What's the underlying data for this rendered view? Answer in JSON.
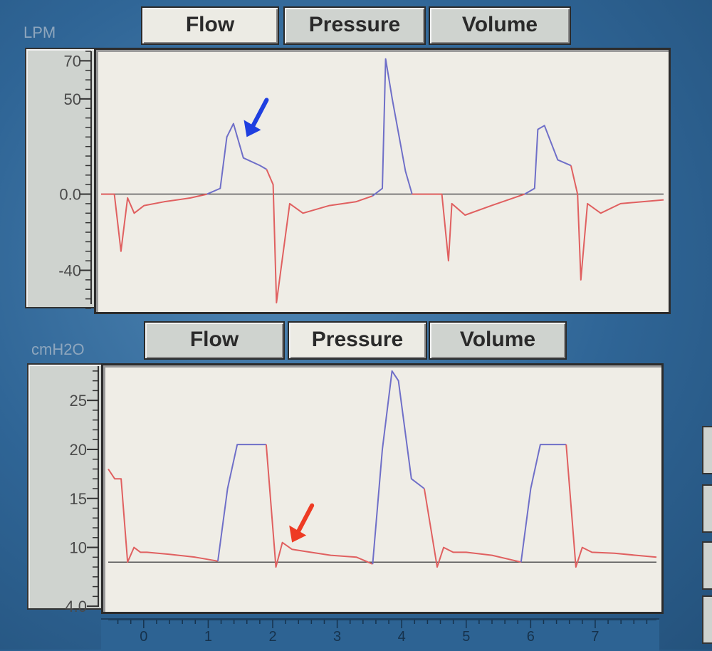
{
  "tabs_top": [
    {
      "label": "Flow",
      "active": true
    },
    {
      "label": "Pressure",
      "active": false
    },
    {
      "label": "Volume",
      "active": false
    }
  ],
  "tabs_bottom": [
    {
      "label": "Flow",
      "active": false
    },
    {
      "label": "Pressure",
      "active": true
    },
    {
      "label": "Volume",
      "active": false
    }
  ],
  "colors": {
    "inspiration": "#6f6fc8",
    "expiration": "#e06060",
    "arrow_blue": "#1f3fe0",
    "arrow_red": "#ee3b24",
    "baseline": "#555555"
  },
  "chart_data": [
    {
      "type": "line",
      "unit": "LPM",
      "yticks": [
        "70",
        "50",
        "0.0",
        "-40"
      ],
      "ylim": [
        -60,
        75
      ],
      "xlim": [
        -0.55,
        7.95
      ],
      "baseline": 0,
      "series": [
        {
          "phase": "inspiration",
          "x": [
            1.05,
            1.25,
            1.35,
            1.45,
            1.6,
            1.85,
            1.95
          ],
          "y": [
            0,
            3,
            30,
            37,
            19,
            15,
            13
          ]
        },
        {
          "phase": "expiration",
          "x": [
            -0.55,
            -0.35,
            -0.25,
            -0.15,
            -0.05,
            0.1,
            0.4,
            0.8,
            1.05
          ],
          "y": [
            0,
            0,
            -30,
            -2,
            -10,
            -6,
            -4,
            -2,
            0
          ]
        },
        {
          "phase": "expiration",
          "x": [
            1.95,
            2.05,
            2.1,
            2.3,
            2.5,
            2.9,
            3.3,
            3.55
          ],
          "y": [
            13,
            5,
            -57,
            -5,
            -10,
            -6,
            -4,
            -1
          ]
        },
        {
          "phase": "inspiration",
          "x": [
            3.55,
            3.7,
            3.75,
            3.85,
            4.05,
            4.15
          ],
          "y": [
            -1,
            3,
            71,
            50,
            12,
            0
          ]
        },
        {
          "phase": "expiration",
          "x": [
            4.15,
            4.3,
            4.6,
            4.7,
            4.75,
            4.95,
            5.35,
            5.85
          ],
          "y": [
            0,
            0,
            0,
            -35,
            -5,
            -11,
            -6,
            0
          ]
        },
        {
          "phase": "inspiration",
          "x": [
            5.85,
            6.0,
            6.05,
            6.15,
            6.35,
            6.55
          ],
          "y": [
            0,
            3,
            34,
            36,
            18,
            15
          ]
        },
        {
          "phase": "expiration",
          "x": [
            6.55,
            6.65,
            6.7,
            6.8,
            7.0,
            7.3,
            7.95
          ],
          "y": [
            15,
            0,
            -45,
            -5,
            -10,
            -5,
            -3
          ]
        }
      ],
      "annotation": {
        "type": "arrow",
        "color": "arrow_blue",
        "points_to": {
          "x": 1.65,
          "y": 30
        }
      }
    },
    {
      "type": "line",
      "unit": "cmH2O",
      "yticks": [
        "25",
        "20",
        "15",
        "10",
        "4.0"
      ],
      "ylim": [
        3.5,
        28.5
      ],
      "xlim": [
        -0.55,
        7.95
      ],
      "xticks": [
        "0",
        "1",
        "2",
        "3",
        "4",
        "5",
        "6",
        "7"
      ],
      "baseline": 8.5,
      "series": [
        {
          "phase": "expiration",
          "x": [
            -0.55,
            -0.45,
            -0.35,
            -0.25,
            -0.15,
            -0.05,
            0.05,
            0.4,
            0.8,
            1.15
          ],
          "y": [
            18,
            17,
            17,
            8.5,
            10,
            9.5,
            9.5,
            9.3,
            9.0,
            8.6
          ]
        },
        {
          "phase": "inspiration",
          "x": [
            1.15,
            1.3,
            1.45,
            1.75,
            1.9
          ],
          "y": [
            8.6,
            16,
            20.5,
            20.5,
            20.5
          ]
        },
        {
          "phase": "expiration",
          "x": [
            1.9,
            2.05,
            2.15,
            2.3,
            2.5,
            2.9,
            3.3,
            3.55
          ],
          "y": [
            20.5,
            8.0,
            10.5,
            9.8,
            9.6,
            9.2,
            9.0,
            8.3
          ]
        },
        {
          "phase": "inspiration",
          "x": [
            3.55,
            3.7,
            3.85,
            3.95,
            4.15,
            4.35
          ],
          "y": [
            8.3,
            20,
            28,
            27,
            17,
            16
          ]
        },
        {
          "phase": "expiration",
          "x": [
            4.35,
            4.55,
            4.65,
            4.8,
            5.0,
            5.4,
            5.85
          ],
          "y": [
            16,
            8.0,
            10,
            9.5,
            9.5,
            9.2,
            8.5
          ]
        },
        {
          "phase": "inspiration",
          "x": [
            5.85,
            6.0,
            6.15,
            6.55
          ],
          "y": [
            8.5,
            16,
            20.5,
            20.5
          ]
        },
        {
          "phase": "expiration",
          "x": [
            6.55,
            6.7,
            6.8,
            6.95,
            7.3,
            7.95
          ],
          "y": [
            20.5,
            8.0,
            10,
            9.5,
            9.4,
            9.0
          ]
        }
      ],
      "annotation": {
        "type": "arrow",
        "color": "arrow_red",
        "points_to": {
          "x": 2.3,
          "y": 10.5
        }
      }
    }
  ]
}
